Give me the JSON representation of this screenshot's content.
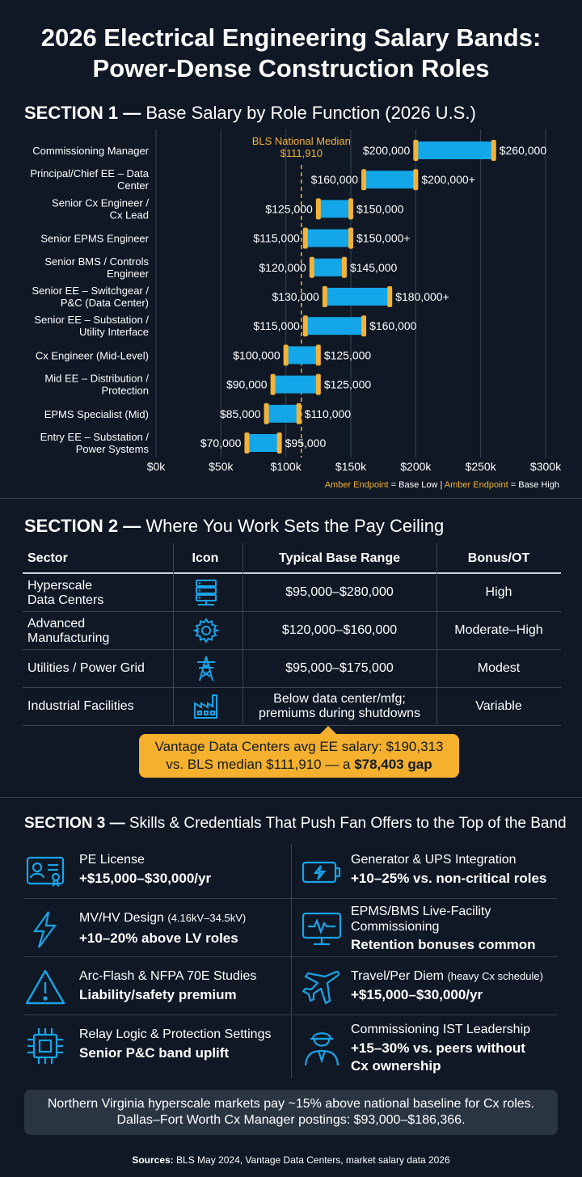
{
  "title_line1": "2026 Electrical Engineering Salary Bands:",
  "title_line2": "Power-Dense Construction Roles",
  "section1": {
    "num": "SECTION 1 —",
    "text": "Base Salary by Role Function (2026 U.S.)"
  },
  "chart_data": {
    "type": "bar",
    "subtype": "range",
    "title": "Base Salary by Role Function (2026 U.S.)",
    "xlim": [
      0,
      300000
    ],
    "x_ticks": [
      0,
      50000,
      100000,
      150000,
      200000,
      250000,
      300000
    ],
    "x_tick_labels": [
      "$0k",
      "$50k",
      "$100k",
      "$150k",
      "$200k",
      "$250k",
      "$300k"
    ],
    "grid": true,
    "bar_color": "#13a6e8",
    "endpoint_color": "#f3b23a",
    "median": {
      "value": 111910,
      "label_line1": "BLS National Median",
      "label_line2": "$111,910"
    },
    "roles": [
      {
        "line1": "Commissioning Manager",
        "line2": "",
        "low": 200000,
        "high": 260000,
        "low_label": "$200,000",
        "high_label": "$260,000"
      },
      {
        "line1": "Principal/Chief EE – Data",
        "line2": "Center",
        "low": 160000,
        "high": 200000,
        "low_label": "$160,000",
        "high_label": "$200,000+"
      },
      {
        "line1": "Senior Cx Engineer /",
        "line2": "Cx Lead",
        "low": 125000,
        "high": 150000,
        "low_label": "$125,000",
        "high_label": "$150,000"
      },
      {
        "line1": "Senior EPMS Engineer",
        "line2": "",
        "low": 115000,
        "high": 150000,
        "low_label": "$115,000",
        "high_label": "$150,000+"
      },
      {
        "line1": "Senior BMS / Controls",
        "line2": "Engineer",
        "low": 120000,
        "high": 145000,
        "low_label": "$120,000",
        "high_label": "$145,000"
      },
      {
        "line1": "Senior EE – Switchgear /",
        "line2": "P&C (Data Center)",
        "low": 130000,
        "high": 180000,
        "low_label": "$130,000",
        "high_label": "$180,000+"
      },
      {
        "line1": "Senior EE – Substation /",
        "line2": "Utility Interface",
        "low": 115000,
        "high": 160000,
        "low_label": "$115,000",
        "high_label": "$160,000"
      },
      {
        "line1": "Cx Engineer (Mid-Level)",
        "line2": "",
        "low": 100000,
        "high": 125000,
        "low_label": "$100,000",
        "high_label": "$125,000"
      },
      {
        "line1": "Mid EE – Distribution /",
        "line2": "Protection",
        "low": 90000,
        "high": 125000,
        "low_label": "$90,000",
        "high_label": "$125,000"
      },
      {
        "line1": "EPMS Specialist (Mid)",
        "line2": "",
        "low": 85000,
        "high": 110000,
        "low_label": "$85,000",
        "high_label": "$110,000"
      },
      {
        "line1": "Entry EE – Substation /",
        "line2": "Power Systems",
        "low": 70000,
        "high": 95000,
        "low_label": "$70,000",
        "high_label": "$95,000"
      }
    ],
    "legend": {
      "amber1": "Amber Endpoint",
      "text1": "= Base Low",
      "sep": "|",
      "amber2": "Amber Endpoint",
      "text2": "= Base High",
      "placement": "bottom-right"
    }
  },
  "section2": {
    "num": "SECTION 2 —",
    "text": "Where You Work Sets the Pay Ceiling",
    "headers": {
      "sector": "Sector",
      "icon": "Icon",
      "range": "Typical Base Range",
      "bonus": "Bonus/OT"
    },
    "rows": [
      {
        "sector1": "Hyperscale",
        "sector2": "Data Centers",
        "icon": "server-rack-icon",
        "range1": "$95,000–$280,000",
        "range2": "",
        "bonus": "High"
      },
      {
        "sector1": "Advanced",
        "sector2": "Manufacturing",
        "icon": "gear-icon",
        "range1": "$120,000–$160,000",
        "range2": "",
        "bonus": "Moderate–High"
      },
      {
        "sector1": "Utilities / Power Grid",
        "sector2": "",
        "icon": "transmission-tower-icon",
        "range1": "$95,000–$175,000",
        "range2": "",
        "bonus": "Modest"
      },
      {
        "sector1": "Industrial Facilities",
        "sector2": "",
        "icon": "factory-icon",
        "range1": "Below data center/mfg;",
        "range2": "premiums during shutdowns",
        "bonus": "Variable"
      }
    ],
    "callout_line1": "Vantage Data Centers avg EE salary: $190,313",
    "callout_line2a": "vs. BLS median $111,910 — a ",
    "callout_line2b": "$78,403 gap",
    "accent": "#f5b02e"
  },
  "section3": {
    "num": "SECTION 3 —",
    "text": "Skills & Credentials That Push Fan Offers to the Top of the Band",
    "skills": [
      {
        "icon": "id-card-icon",
        "t1": "PE License",
        "t1_small": "",
        "t1b": "",
        "t2": "+$15,000–$30,000/yr"
      },
      {
        "icon": "battery-bolt-icon",
        "t1": "Generator & UPS Integration",
        "t1_small": "",
        "t1b": "",
        "t2": "+10–25% vs. non-critical roles"
      },
      {
        "icon": "lightning-icon",
        "t1": "MV/HV Design ",
        "t1_small": "(4.16kV–34.5kV)",
        "t1b": "",
        "t2": "+10–20% above LV roles"
      },
      {
        "icon": "monitor-pulse-icon",
        "t1": "EPMS/BMS Live-Facility",
        "t1_small": "",
        "t1b": "Commissioning",
        "t2": "Retention bonuses common"
      },
      {
        "icon": "warning-triangle-icon",
        "t1": "Arc-Flash & NFPA 70E Studies",
        "t1_small": "",
        "t1b": "",
        "t2": "Liability/safety premium"
      },
      {
        "icon": "airplane-icon",
        "t1": "Travel/Per Diem ",
        "t1_small": "(heavy Cx schedule)",
        "t1b": "",
        "t2": "+$15,000–$30,000/yr"
      },
      {
        "icon": "chip-icon",
        "t1": "Relay Logic & Protection Settings",
        "t1_small": "",
        "t1b": "",
        "t2": "Senior P&C band uplift"
      },
      {
        "icon": "engineer-icon",
        "t1": "Commissioning IST Leadership",
        "t1_small": "",
        "t1b": "",
        "t2": "+15–30% vs. peers without",
        "t3": "Cx ownership"
      }
    ]
  },
  "note_line1": "Northern Virginia hyperscale markets pay ~15% above national baseline for Cx roles.",
  "note_line2": "Dallas–Fort Worth Cx Manager postings: $93,000–$186,366.",
  "sources_label": "Sources:",
  "sources_text": " BLS May 2024, Vantage Data Centers, market salary data 2026"
}
